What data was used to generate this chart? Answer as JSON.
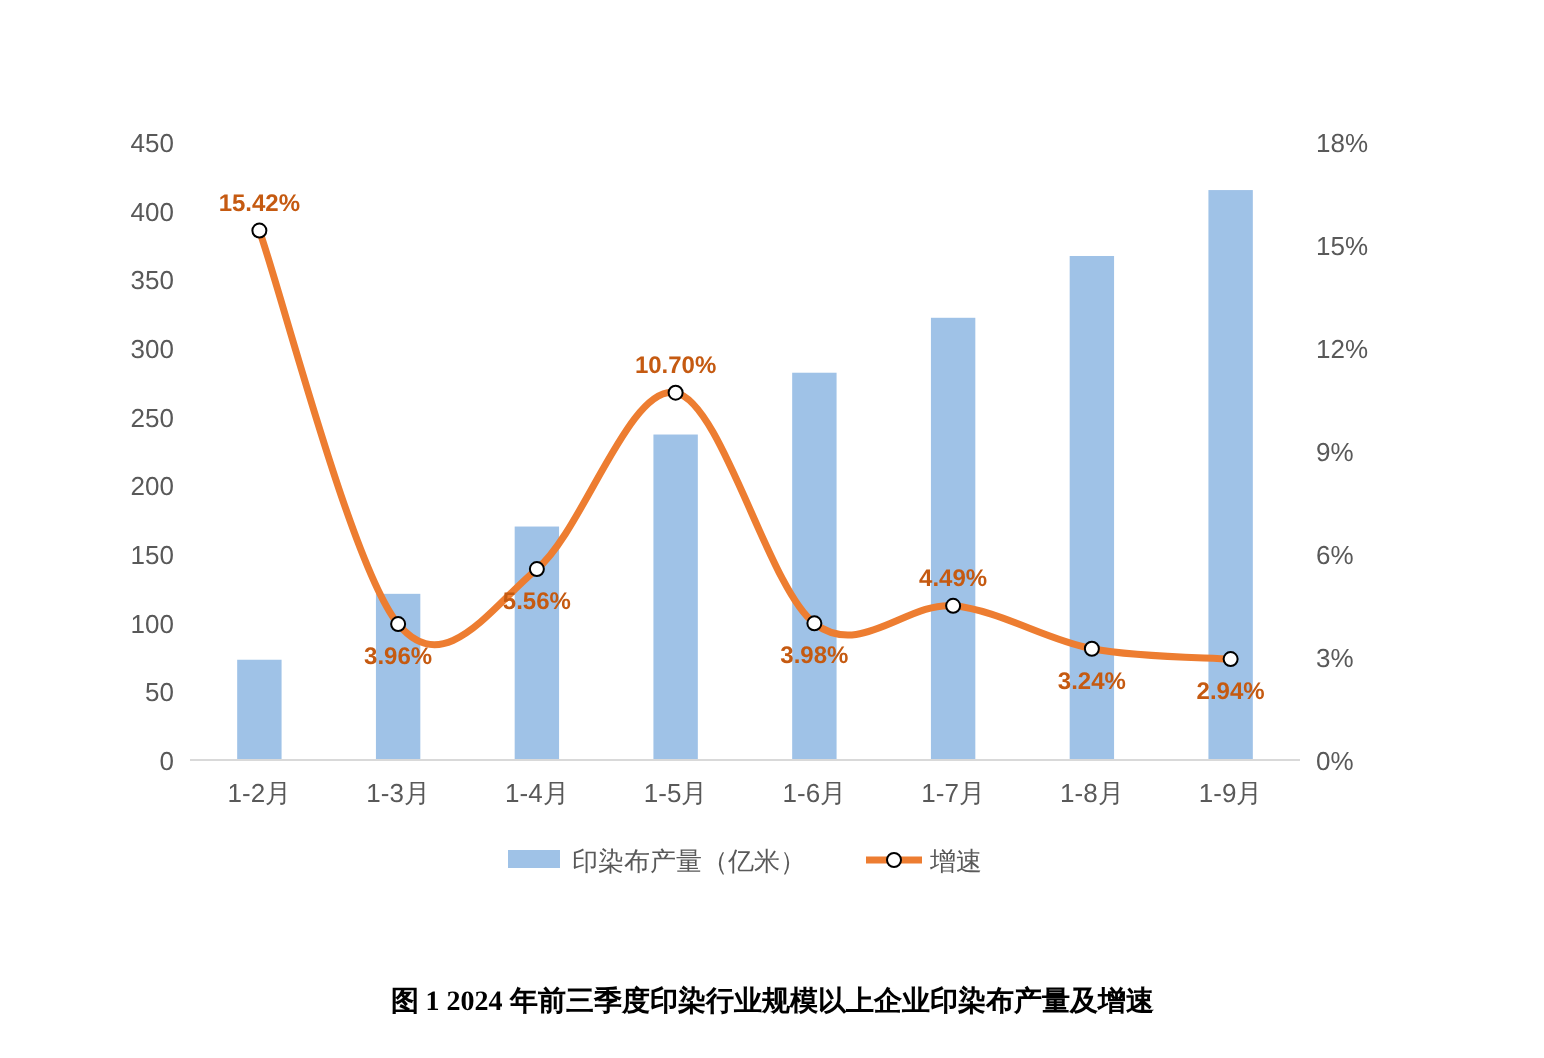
{
  "chart_data": {
    "type": "bar",
    "categories": [
      "1-2月",
      "1-3月",
      "1-4月",
      "1-5月",
      "1-6月",
      "1-7月",
      "1-8月",
      "1-9月"
    ],
    "series": [
      {
        "name": "印染布产量（亿米）",
        "color": "#9fc2e7",
        "values": [
          73,
          121,
          170,
          237,
          282,
          322,
          367,
          415
        ]
      },
      {
        "name": "增速",
        "type": "line",
        "axis": "y2",
        "color": "#ed7d31",
        "values": [
          15.42,
          3.96,
          5.56,
          10.7,
          3.98,
          4.49,
          3.24,
          2.94
        ],
        "value_labels": [
          "15.42%",
          "3.96%",
          "5.56%",
          "10.70%",
          "3.98%",
          "4.49%",
          "3.24%",
          "2.94%"
        ]
      }
    ],
    "ylim": [
      0,
      450
    ],
    "yticks": [
      0,
      50,
      100,
      150,
      200,
      250,
      300,
      350,
      400,
      450
    ],
    "y2lim": [
      0,
      18
    ],
    "y2ticks": [
      {
        "value": 0,
        "label": "0%"
      },
      {
        "value": 3,
        "label": "3%"
      },
      {
        "value": 6,
        "label": "6%"
      },
      {
        "value": 9,
        "label": "9%"
      },
      {
        "value": 12,
        "label": "12%"
      },
      {
        "value": 15,
        "label": "15%"
      },
      {
        "value": 18,
        "label": "18%"
      }
    ],
    "marker": "circle",
    "grid": false,
    "legend": "bottom",
    "annotations": [
      "图 1 2024 年前三季度印染行业规模以上企业印染布产量及增速"
    ]
  }
}
